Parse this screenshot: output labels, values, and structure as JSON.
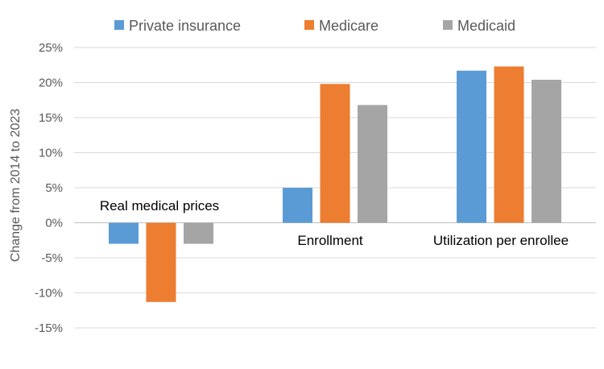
{
  "chart_data": {
    "type": "bar",
    "categories": [
      "Real medical prices",
      "Enrollment",
      "Utilization per enrollee"
    ],
    "series": [
      {
        "name": "Private insurance",
        "color": "#5B9BD5",
        "values": [
          -3.0,
          5.0,
          21.7
        ]
      },
      {
        "name": "Medicare",
        "color": "#ED7D31",
        "values": [
          -11.3,
          19.8,
          22.3
        ]
      },
      {
        "name": "Medicaid",
        "color": "#A5A5A5",
        "values": [
          -3.0,
          16.8,
          20.4
        ]
      }
    ],
    "title": "",
    "xlabel": "",
    "ylabel": "Change from 2014 to 2023",
    "ylim": [
      -15,
      25
    ],
    "yticks": [
      25,
      20,
      15,
      10,
      5,
      0,
      -5,
      -10,
      -15
    ],
    "ytick_labels": [
      "25%",
      "20%",
      "15%",
      "10%",
      "5%",
      "0%",
      "-5%",
      "-10%",
      "-15%"
    ],
    "grid": true,
    "legend_position": "top"
  }
}
